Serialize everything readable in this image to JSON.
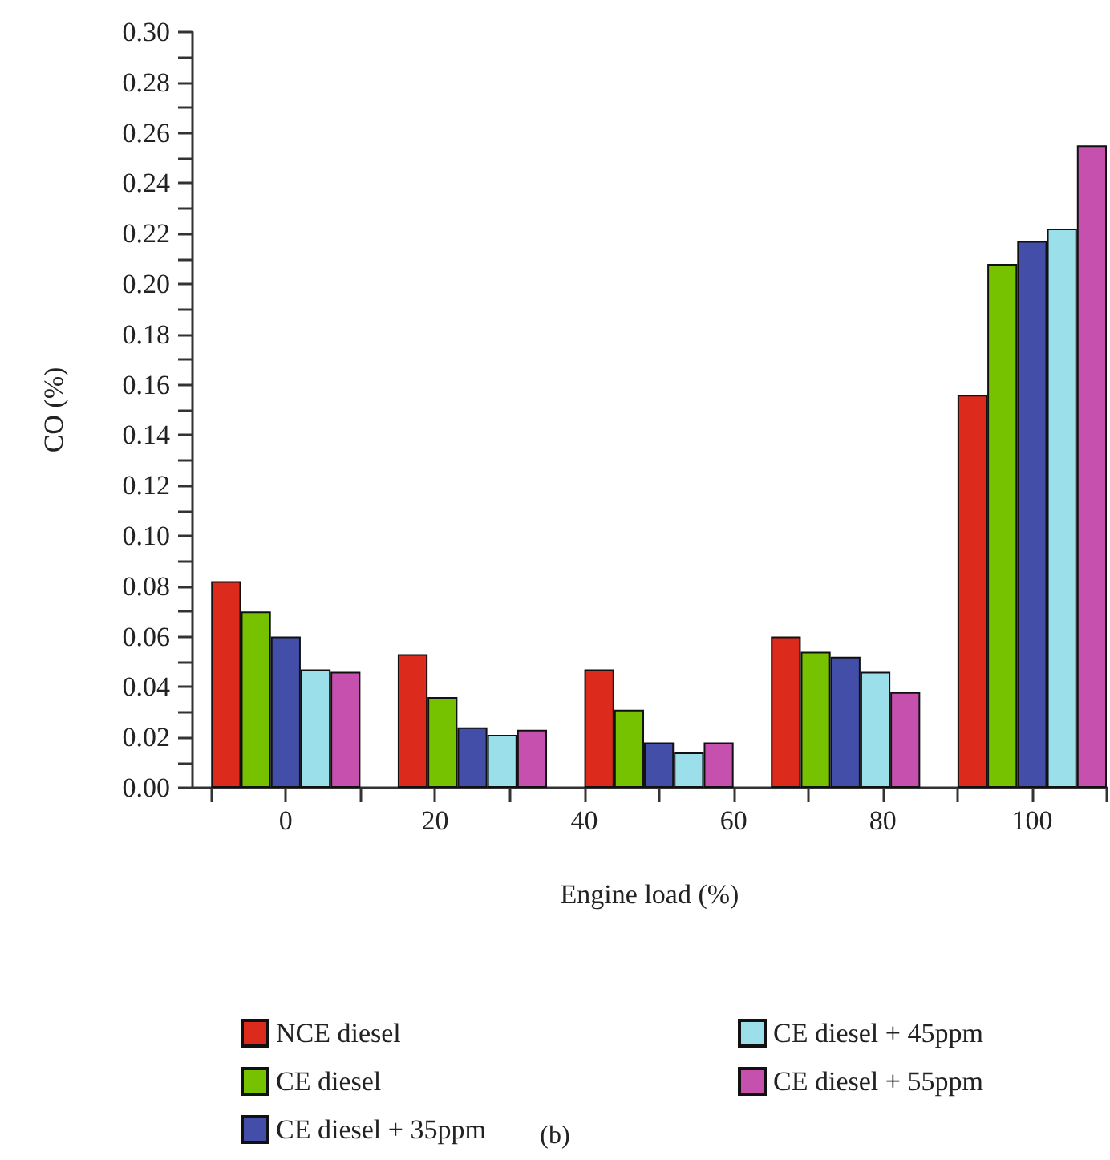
{
  "chart_data": {
    "type": "bar",
    "xlabel": "Engine load (%)",
    "ylabel": "CO (%)",
    "annotations": [
      "(b)"
    ],
    "x": [
      0,
      25,
      50,
      75,
      100
    ],
    "series": [
      {
        "name": "NCE diesel",
        "color": "#dc2a1c",
        "values": [
          0.082,
          0.053,
          0.047,
          0.06,
          0.156
        ]
      },
      {
        "name": "CE diesel",
        "color": "#76c200",
        "values": [
          0.07,
          0.036,
          0.031,
          0.054,
          0.208
        ]
      },
      {
        "name": "CE diesel + 35ppm",
        "color": "#434ea8",
        "values": [
          0.06,
          0.024,
          0.018,
          0.052,
          0.217
        ]
      },
      {
        "name": "CE diesel + 45ppm",
        "color": "#9adfea",
        "values": [
          0.047,
          0.021,
          0.014,
          0.046,
          0.222
        ]
      },
      {
        "name": "CE diesel + 55ppm",
        "color": "#c550ad",
        "values": [
          0.046,
          0.023,
          0.018,
          0.038,
          0.255
        ]
      }
    ],
    "xlim": [
      -12.5,
      110
    ],
    "xticks": [
      {
        "value": -10,
        "label": null
      },
      0,
      {
        "value": 10,
        "label": null
      },
      20,
      {
        "value": 30,
        "label": null
      },
      40,
      {
        "value": 50,
        "label": null
      },
      60,
      {
        "value": 70,
        "label": null
      },
      80,
      {
        "value": 90,
        "label": null
      },
      100,
      {
        "value": 110,
        "label": null
      }
    ],
    "ylim": [
      0,
      0.3
    ],
    "yticks": [
      {
        "value": 0,
        "label": "0.00"
      },
      {
        "value": 0.01,
        "label": null
      },
      {
        "value": 0.02,
        "label": "0.02"
      },
      {
        "value": 0.03,
        "label": null
      },
      {
        "value": 0.04,
        "label": "0.04"
      },
      {
        "value": 0.05,
        "label": null
      },
      {
        "value": 0.06,
        "label": "0.06"
      },
      {
        "value": 0.07,
        "label": null
      },
      {
        "value": 0.08,
        "label": "0.08"
      },
      {
        "value": 0.09,
        "label": null
      },
      {
        "value": 0.1,
        "label": "0.10"
      },
      {
        "value": 0.11,
        "label": null
      },
      {
        "value": 0.12,
        "label": "0.12"
      },
      {
        "value": 0.13,
        "label": null
      },
      {
        "value": 0.14,
        "label": "0.14"
      },
      {
        "value": 0.15,
        "label": null
      },
      {
        "value": 0.16,
        "label": "0.16"
      },
      {
        "value": 0.17,
        "label": null
      },
      {
        "value": 0.18,
        "label": "0.18"
      },
      {
        "value": 0.19,
        "label": null
      },
      {
        "value": 0.2,
        "label": "0.20"
      },
      {
        "value": 0.21,
        "label": null
      },
      {
        "value": 0.22,
        "label": "0.22"
      },
      {
        "value": 0.23,
        "label": null
      },
      {
        "value": 0.24,
        "label": "0.24"
      },
      {
        "value": 0.25,
        "label": null
      },
      {
        "value": 0.26,
        "label": "0.26"
      },
      {
        "value": 0.27,
        "label": null
      },
      {
        "value": 0.28,
        "label": "0.28"
      },
      {
        "value": 0.29,
        "label": null
      },
      {
        "value": 0.3,
        "label": "0.30"
      }
    ],
    "grid": false,
    "legend": "bottom"
  }
}
